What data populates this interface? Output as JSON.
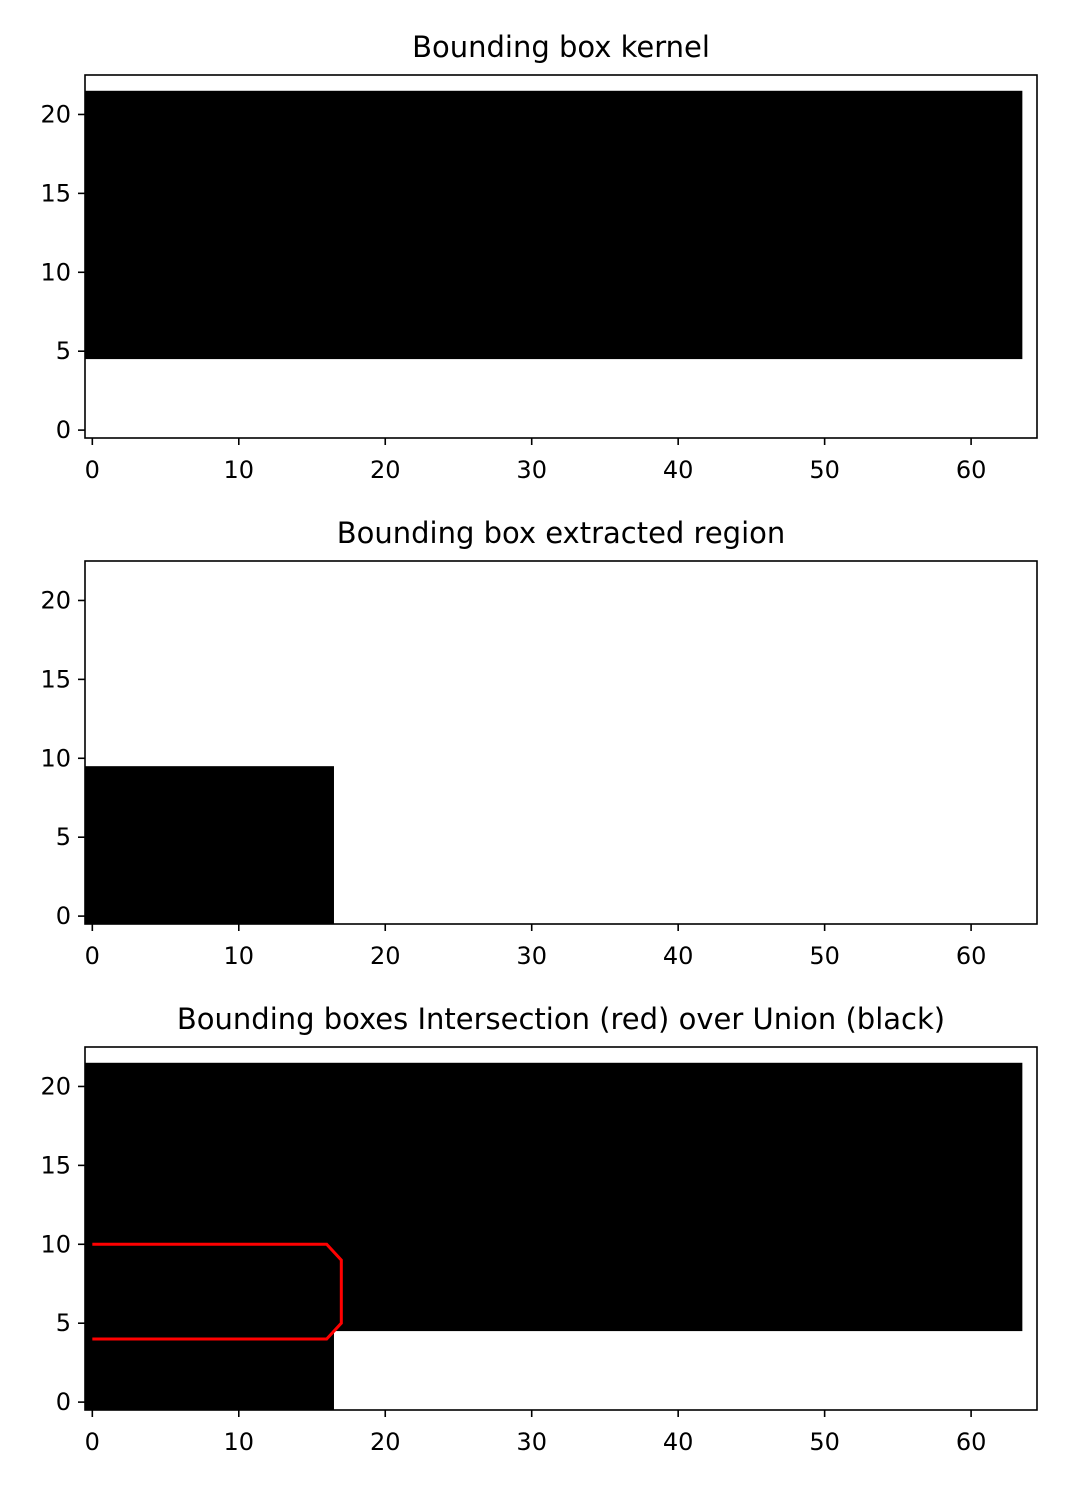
{
  "chart_data": [
    {
      "type": "heatmap",
      "title": "Bounding box kernel",
      "xlim": [
        -0.5,
        64.5
      ],
      "ylim": [
        -0.5,
        22.5
      ],
      "xticks": [
        0,
        10,
        20,
        30,
        40,
        50,
        60
      ],
      "yticks": [
        0,
        5,
        10,
        15,
        20
      ],
      "grid": false,
      "filled_regions": [
        {
          "color": "#000000",
          "x": [
            -0.5,
            63.5
          ],
          "y": [
            4.5,
            21.5
          ]
        }
      ],
      "outlines": []
    },
    {
      "type": "heatmap",
      "title": "Bounding box extracted region",
      "xlim": [
        -0.5,
        64.5
      ],
      "ylim": [
        -0.5,
        22.5
      ],
      "xticks": [
        0,
        10,
        20,
        30,
        40,
        50,
        60
      ],
      "yticks": [
        0,
        5,
        10,
        15,
        20
      ],
      "grid": false,
      "filled_regions": [
        {
          "color": "#000000",
          "x": [
            -0.5,
            16.5
          ],
          "y": [
            -0.5,
            9.5
          ]
        }
      ],
      "outlines": []
    },
    {
      "type": "heatmap",
      "title": "Bounding boxes Intersection (red) over Union (black)",
      "xlim": [
        -0.5,
        64.5
      ],
      "ylim": [
        -0.5,
        22.5
      ],
      "xticks": [
        0,
        10,
        20,
        30,
        40,
        50,
        60
      ],
      "yticks": [
        0,
        5,
        10,
        15,
        20
      ],
      "grid": false,
      "filled_regions": [
        {
          "color": "#000000",
          "x": [
            -0.5,
            63.5
          ],
          "y": [
            4.5,
            21.5
          ]
        },
        {
          "color": "#000000",
          "x": [
            -0.5,
            16.5
          ],
          "y": [
            -0.5,
            9.5
          ]
        }
      ],
      "outlines": [
        {
          "color": "#ff0000",
          "points": [
            [
              0,
              10
            ],
            [
              16,
              10
            ],
            [
              17,
              9
            ],
            [
              17,
              5
            ],
            [
              16,
              4
            ],
            [
              0,
              4
            ]
          ]
        }
      ]
    }
  ]
}
